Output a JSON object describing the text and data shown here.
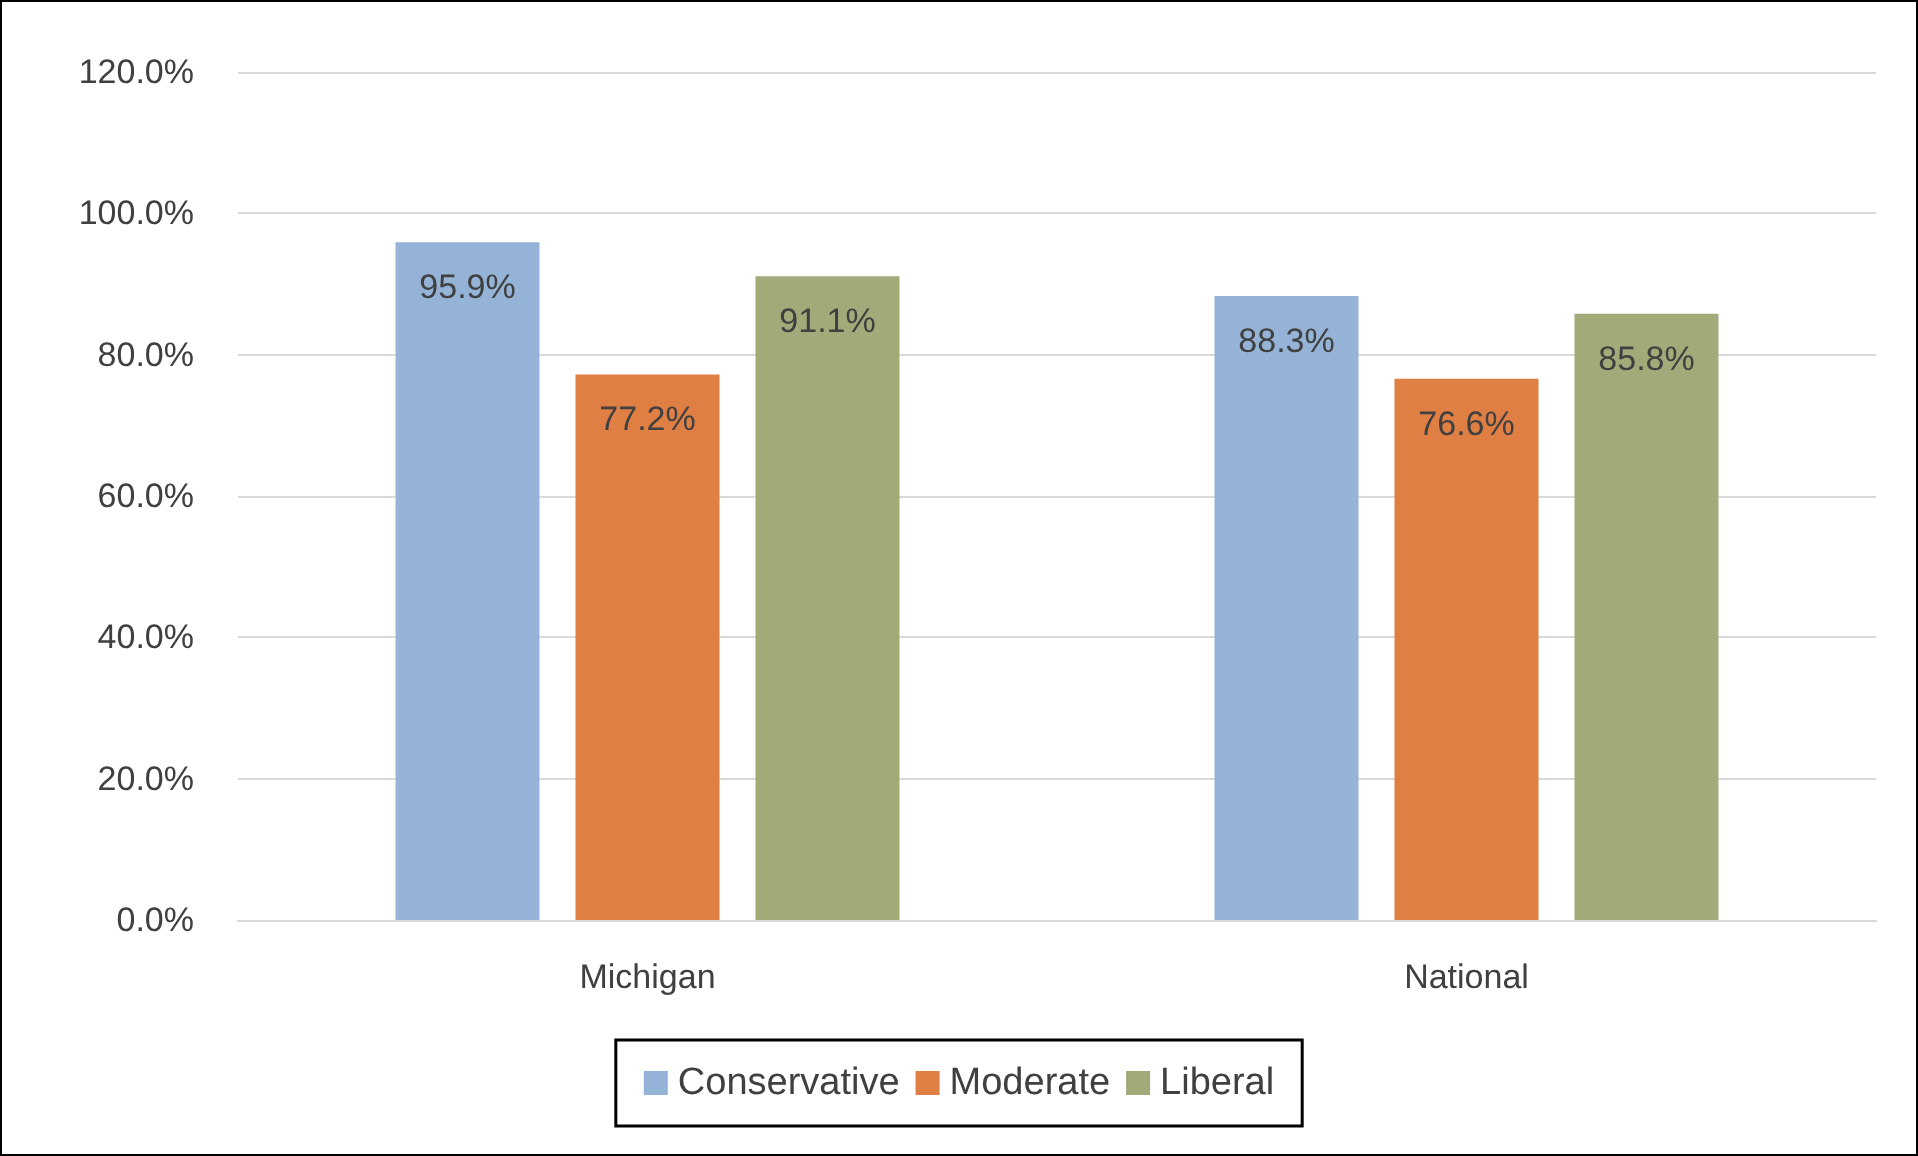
{
  "chart_data": {
    "type": "bar",
    "categories": [
      "Michigan",
      "National"
    ],
    "series": [
      {
        "name": "Conservative",
        "color": "#95b3d7",
        "values": [
          95.9,
          88.3
        ],
        "value_labels": [
          "95.9%",
          "88.3%"
        ]
      },
      {
        "name": "Moderate",
        "color": "#e07f44",
        "values": [
          77.2,
          76.6
        ],
        "value_labels": [
          "77.2%",
          "76.6%"
        ]
      },
      {
        "name": "Liberal",
        "color": "#a2aa7a",
        "values": [
          91.1,
          85.8
        ],
        "value_labels": [
          "91.1%",
          "85.8%"
        ]
      }
    ],
    "ylim": [
      0,
      120
    ],
    "yticks": [
      {
        "value": 0,
        "label": "0.0%"
      },
      {
        "value": 20,
        "label": "20.0%"
      },
      {
        "value": 40,
        "label": "40.0%"
      },
      {
        "value": 60,
        "label": "60.0%"
      },
      {
        "value": 80,
        "label": "80.0%"
      },
      {
        "value": 100,
        "label": "100.0%"
      },
      {
        "value": 120,
        "label": "120.0%"
      }
    ],
    "grid": "y",
    "legend": "bottom"
  }
}
